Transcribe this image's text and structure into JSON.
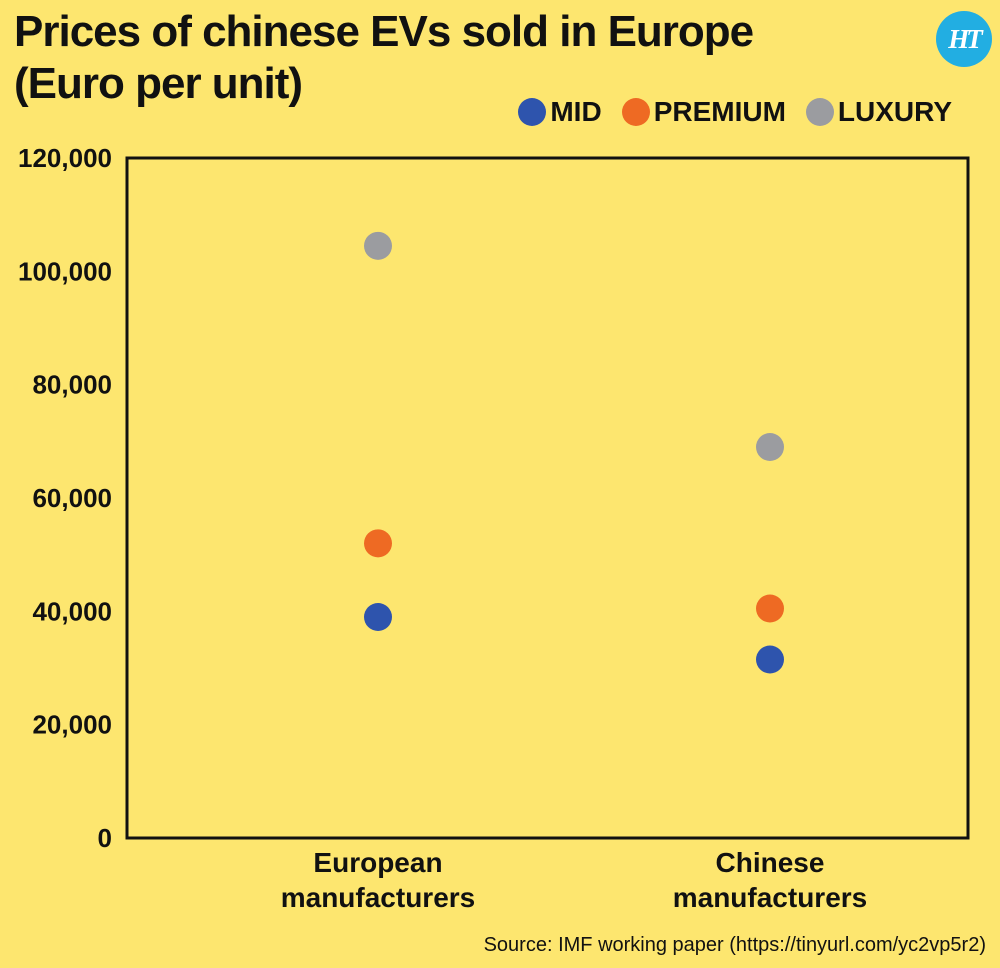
{
  "header": {
    "title": "Prices of chinese EVs sold in Europe\n(Euro per unit)",
    "logo_text": "HT"
  },
  "legend": [
    {
      "name": "MID",
      "color": "#2e54ad"
    },
    {
      "name": "PREMIUM",
      "color": "#ee6a23"
    },
    {
      "name": "LUXURY",
      "color": "#9b9ca0"
    }
  ],
  "footer": {
    "source": "Source: IMF working paper (https://tinyurl.com/yc2vp5r2)"
  },
  "chart_data": {
    "type": "scatter",
    "title": "Prices of chinese EVs sold in Europe (Euro per unit)",
    "categories": [
      "European\nmanufacturers",
      "Chinese\nmanufacturers"
    ],
    "ylim": [
      0,
      120000
    ],
    "yticks": [
      0,
      20000,
      40000,
      60000,
      80000,
      100000,
      120000
    ],
    "ytick_labels": [
      "0",
      "20,000",
      "40,000",
      "60,000",
      "80,000",
      "100,000",
      "120,000"
    ],
    "grid": false,
    "legend_position": "top-right",
    "series": [
      {
        "name": "MID",
        "color": "#2e54ad",
        "values": [
          39000,
          31500
        ]
      },
      {
        "name": "PREMIUM",
        "color": "#ee6a23",
        "values": [
          52000,
          40500
        ]
      },
      {
        "name": "LUXURY",
        "color": "#9b9ca0",
        "values": [
          104500,
          69000
        ]
      }
    ]
  }
}
